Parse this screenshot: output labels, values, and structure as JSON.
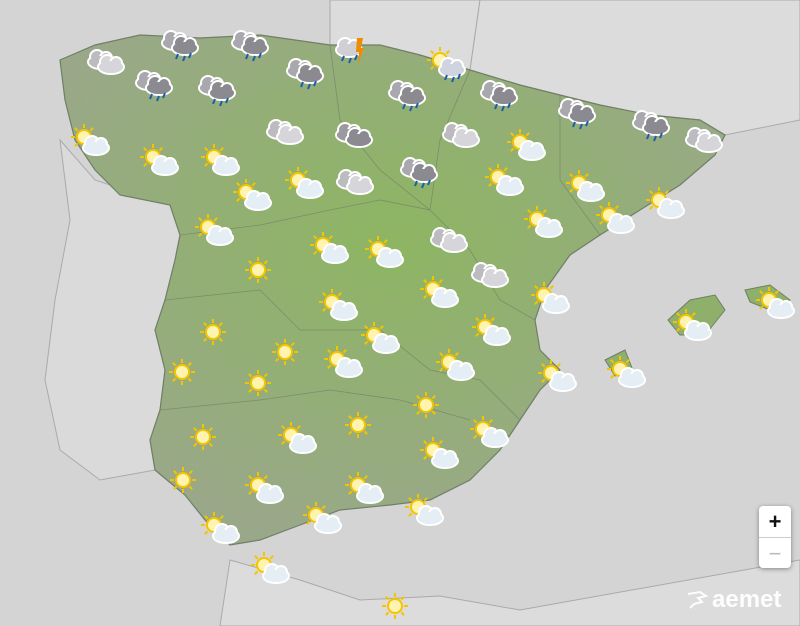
{
  "map": {
    "colors": {
      "sea": "#d4d4d4",
      "foreign_land": "#dcdcdc",
      "spain_land": "#8fb06a",
      "border": "#6f7f66",
      "sun": "#f5c400",
      "cloud": "#c8c8cc",
      "rain_cloud": "#8a8a90",
      "rain": "#1a5fa8",
      "lightning": "#f08a00"
    },
    "forecast_icons": [
      "cloud",
      "rain",
      "rain",
      "rain",
      "rain",
      "rain",
      "storm",
      "sun-rain",
      "rain",
      "rain",
      "rain",
      "rain",
      "cloud",
      "sun-cloud",
      "sun-cloud",
      "sun-cloud",
      "cloud",
      "cloud-dark",
      "cloud",
      "sun-cloud",
      "sun-cloud",
      "sun-cloud",
      "cloud",
      "rain",
      "sun-cloud",
      "sun-cloud",
      "sun-cloud",
      "sun-cloud",
      "sun-cloud",
      "sun-cloud",
      "cloud",
      "sun-cloud",
      "sun-cloud",
      "sun",
      "cloud",
      "sun-cloud",
      "sun-cloud",
      "sun-cloud",
      "sun-cloud",
      "sun-cloud",
      "sun",
      "sun-cloud",
      "sun-cloud",
      "sun",
      "sun",
      "sun-cloud",
      "sun-cloud",
      "sun-cloud",
      "sun-cloud",
      "sun",
      "sun",
      "sun",
      "sun",
      "sun-cloud",
      "sun-cloud",
      "sun-cloud",
      "sun",
      "sun-cloud",
      "sun-cloud",
      "sun-cloud",
      "sun-cloud",
      "sun-cloud",
      "sun-cloud",
      "sun"
    ]
  },
  "controls": {
    "zoom_in": "+",
    "zoom_out": "−"
  },
  "logo": {
    "text": "aemet"
  }
}
